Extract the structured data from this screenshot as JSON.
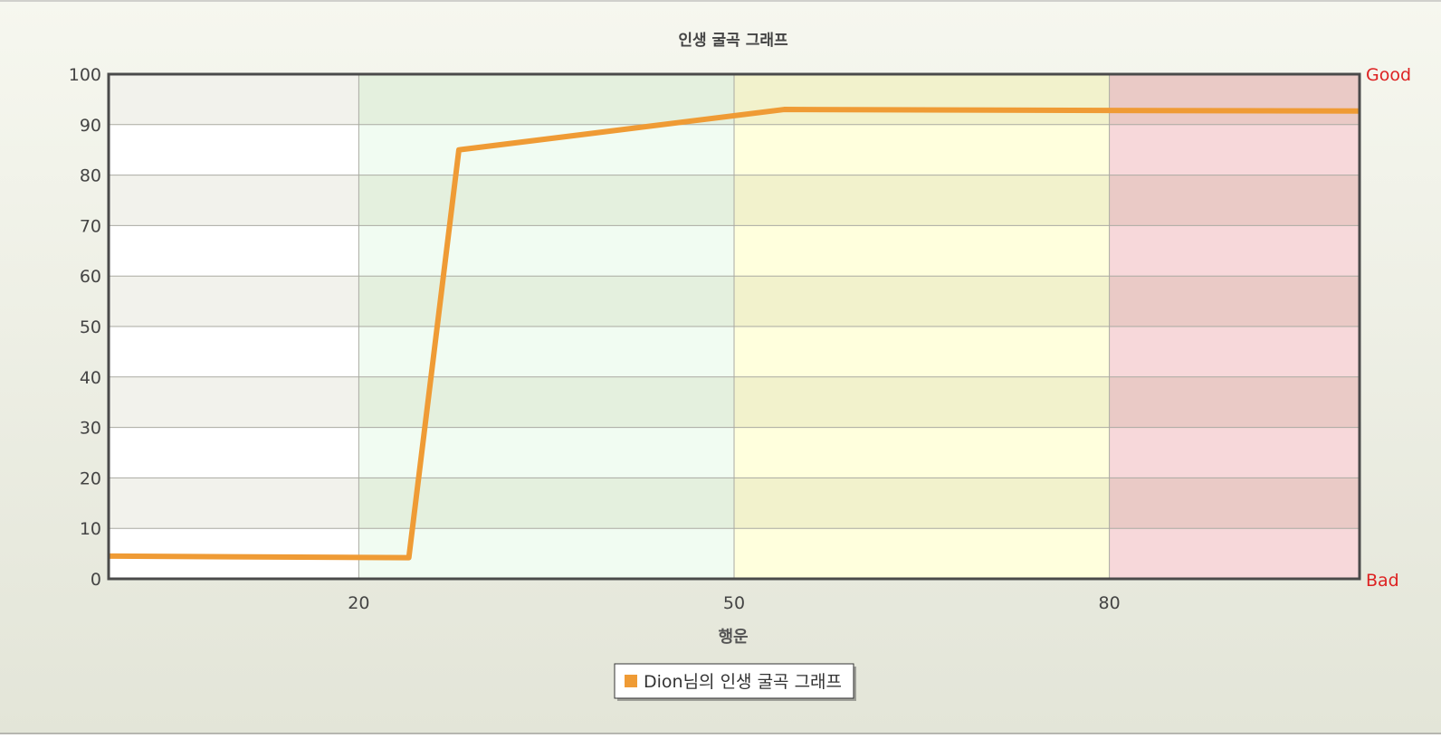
{
  "chart_data": {
    "type": "line",
    "title": "인생 굴곡 그래프",
    "xlabel": "행운",
    "ylabel": "",
    "xlim": [
      0,
      100
    ],
    "ylim": [
      0,
      100
    ],
    "x_ticks": [
      20,
      50,
      80
    ],
    "y_ticks": [
      0,
      10,
      20,
      30,
      40,
      50,
      60,
      70,
      80,
      90,
      100
    ],
    "right_labels": {
      "top": "Good",
      "bottom": "Bad"
    },
    "bands": [
      {
        "from": 0,
        "to": 20,
        "color": "#ffffff",
        "alt_color": "#f2f2ec"
      },
      {
        "from": 20,
        "to": 50,
        "color": "#f1fcf2",
        "alt_color": "#e4f0de"
      },
      {
        "from": 50,
        "to": 80,
        "color": "#ffffdd",
        "alt_color": "#f2f2cc"
      },
      {
        "from": 80,
        "to": 100,
        "color": "#f7d8da",
        "alt_color": "#eacac6"
      }
    ],
    "grid": true,
    "legend_position": "bottom-center",
    "series": [
      {
        "name": "Dion님의 인생 굴곡 그래프",
        "color": "#ef9b35",
        "x": [
          0,
          24,
          28,
          54,
          80,
          100
        ],
        "y": [
          4.5,
          4.2,
          85,
          93,
          92.8,
          92.7
        ]
      }
    ]
  },
  "colors": {
    "background_top": "#f6f7ef",
    "background_bottom": "#e3e5d8",
    "plot_border": "#4a4a4a",
    "grid_line": "#aaaaa2",
    "label_red": "#dd2222",
    "text": "#444444"
  }
}
